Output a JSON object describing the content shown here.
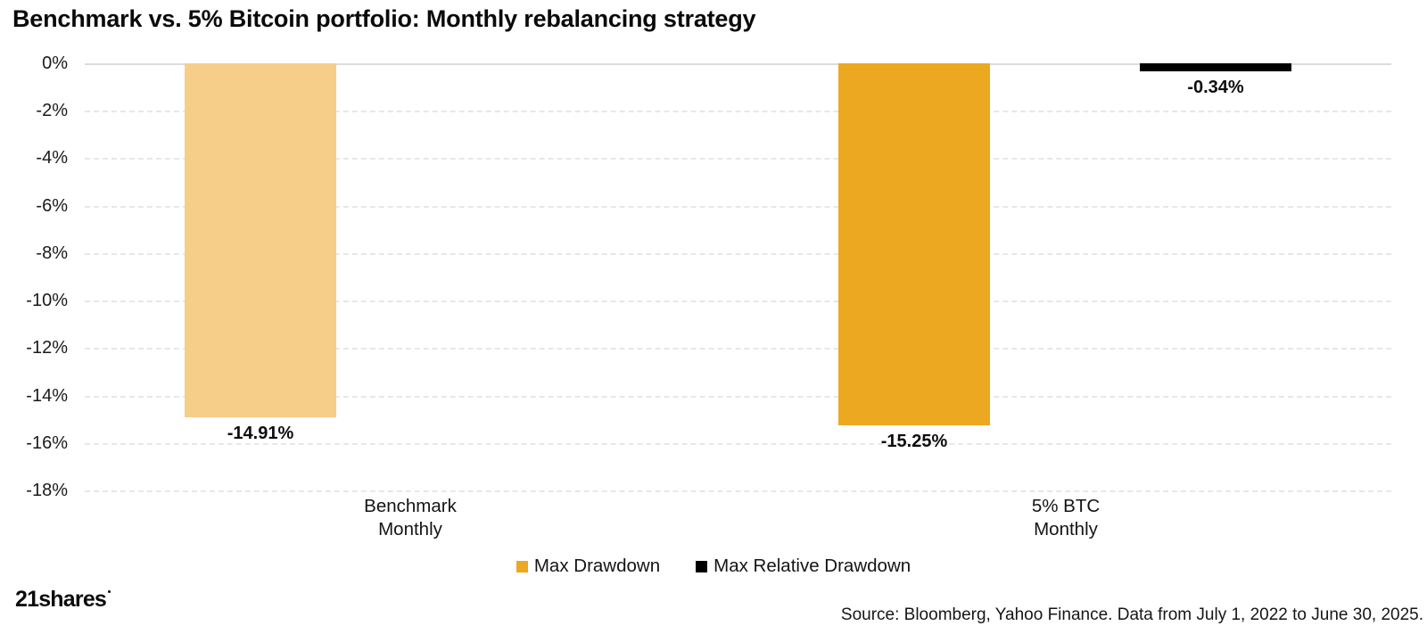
{
  "chart_data": {
    "type": "bar",
    "title": "Benchmark vs. 5% Bitcoin portfolio: Monthly rebalancing strategy",
    "categories": [
      {
        "line1": "Benchmark",
        "line2": "Monthly"
      },
      {
        "line1": "5% BTC",
        "line2": "Monthly"
      }
    ],
    "series": [
      {
        "name": "Max Drawdown",
        "values": [
          -14.91,
          -15.25
        ]
      },
      {
        "name": "Max Relative Drawdown",
        "values": [
          null,
          -0.34
        ]
      }
    ],
    "bars": [
      {
        "category": "Benchmark Monthly",
        "series": "Max Drawdown",
        "value": -14.91,
        "label": "-14.91%",
        "color": "#F6CE8A"
      },
      {
        "category": "5% BTC Monthly",
        "series": "Max Drawdown",
        "value": -15.25,
        "label": "-15.25%",
        "color": "#ECA821"
      },
      {
        "category": "5% BTC Monthly",
        "series": "Max Relative Drawdown",
        "value": -0.34,
        "label": "-0.34%",
        "color": "#000000"
      }
    ],
    "ylabel": "",
    "xlabel": "",
    "ylim": [
      -18,
      0
    ],
    "ytick_labels": [
      "0%",
      "-2%",
      "-4%",
      "-6%",
      "-8%",
      "-10%",
      "-12%",
      "-14%",
      "-16%",
      "-18%"
    ],
    "grid": "horizontal-dashed",
    "legend_position": "bottom-center",
    "legend": {
      "items": [
        {
          "label": "Max Drawdown",
          "color": "#ECA821"
        },
        {
          "label": "Max Relative Drawdown",
          "color": "#000000"
        }
      ]
    }
  },
  "footer": {
    "logo_text": "21shares",
    "source": "Source: Bloomberg, Yahoo Finance. Data from July 1, 2022 to June 30, 2025."
  }
}
